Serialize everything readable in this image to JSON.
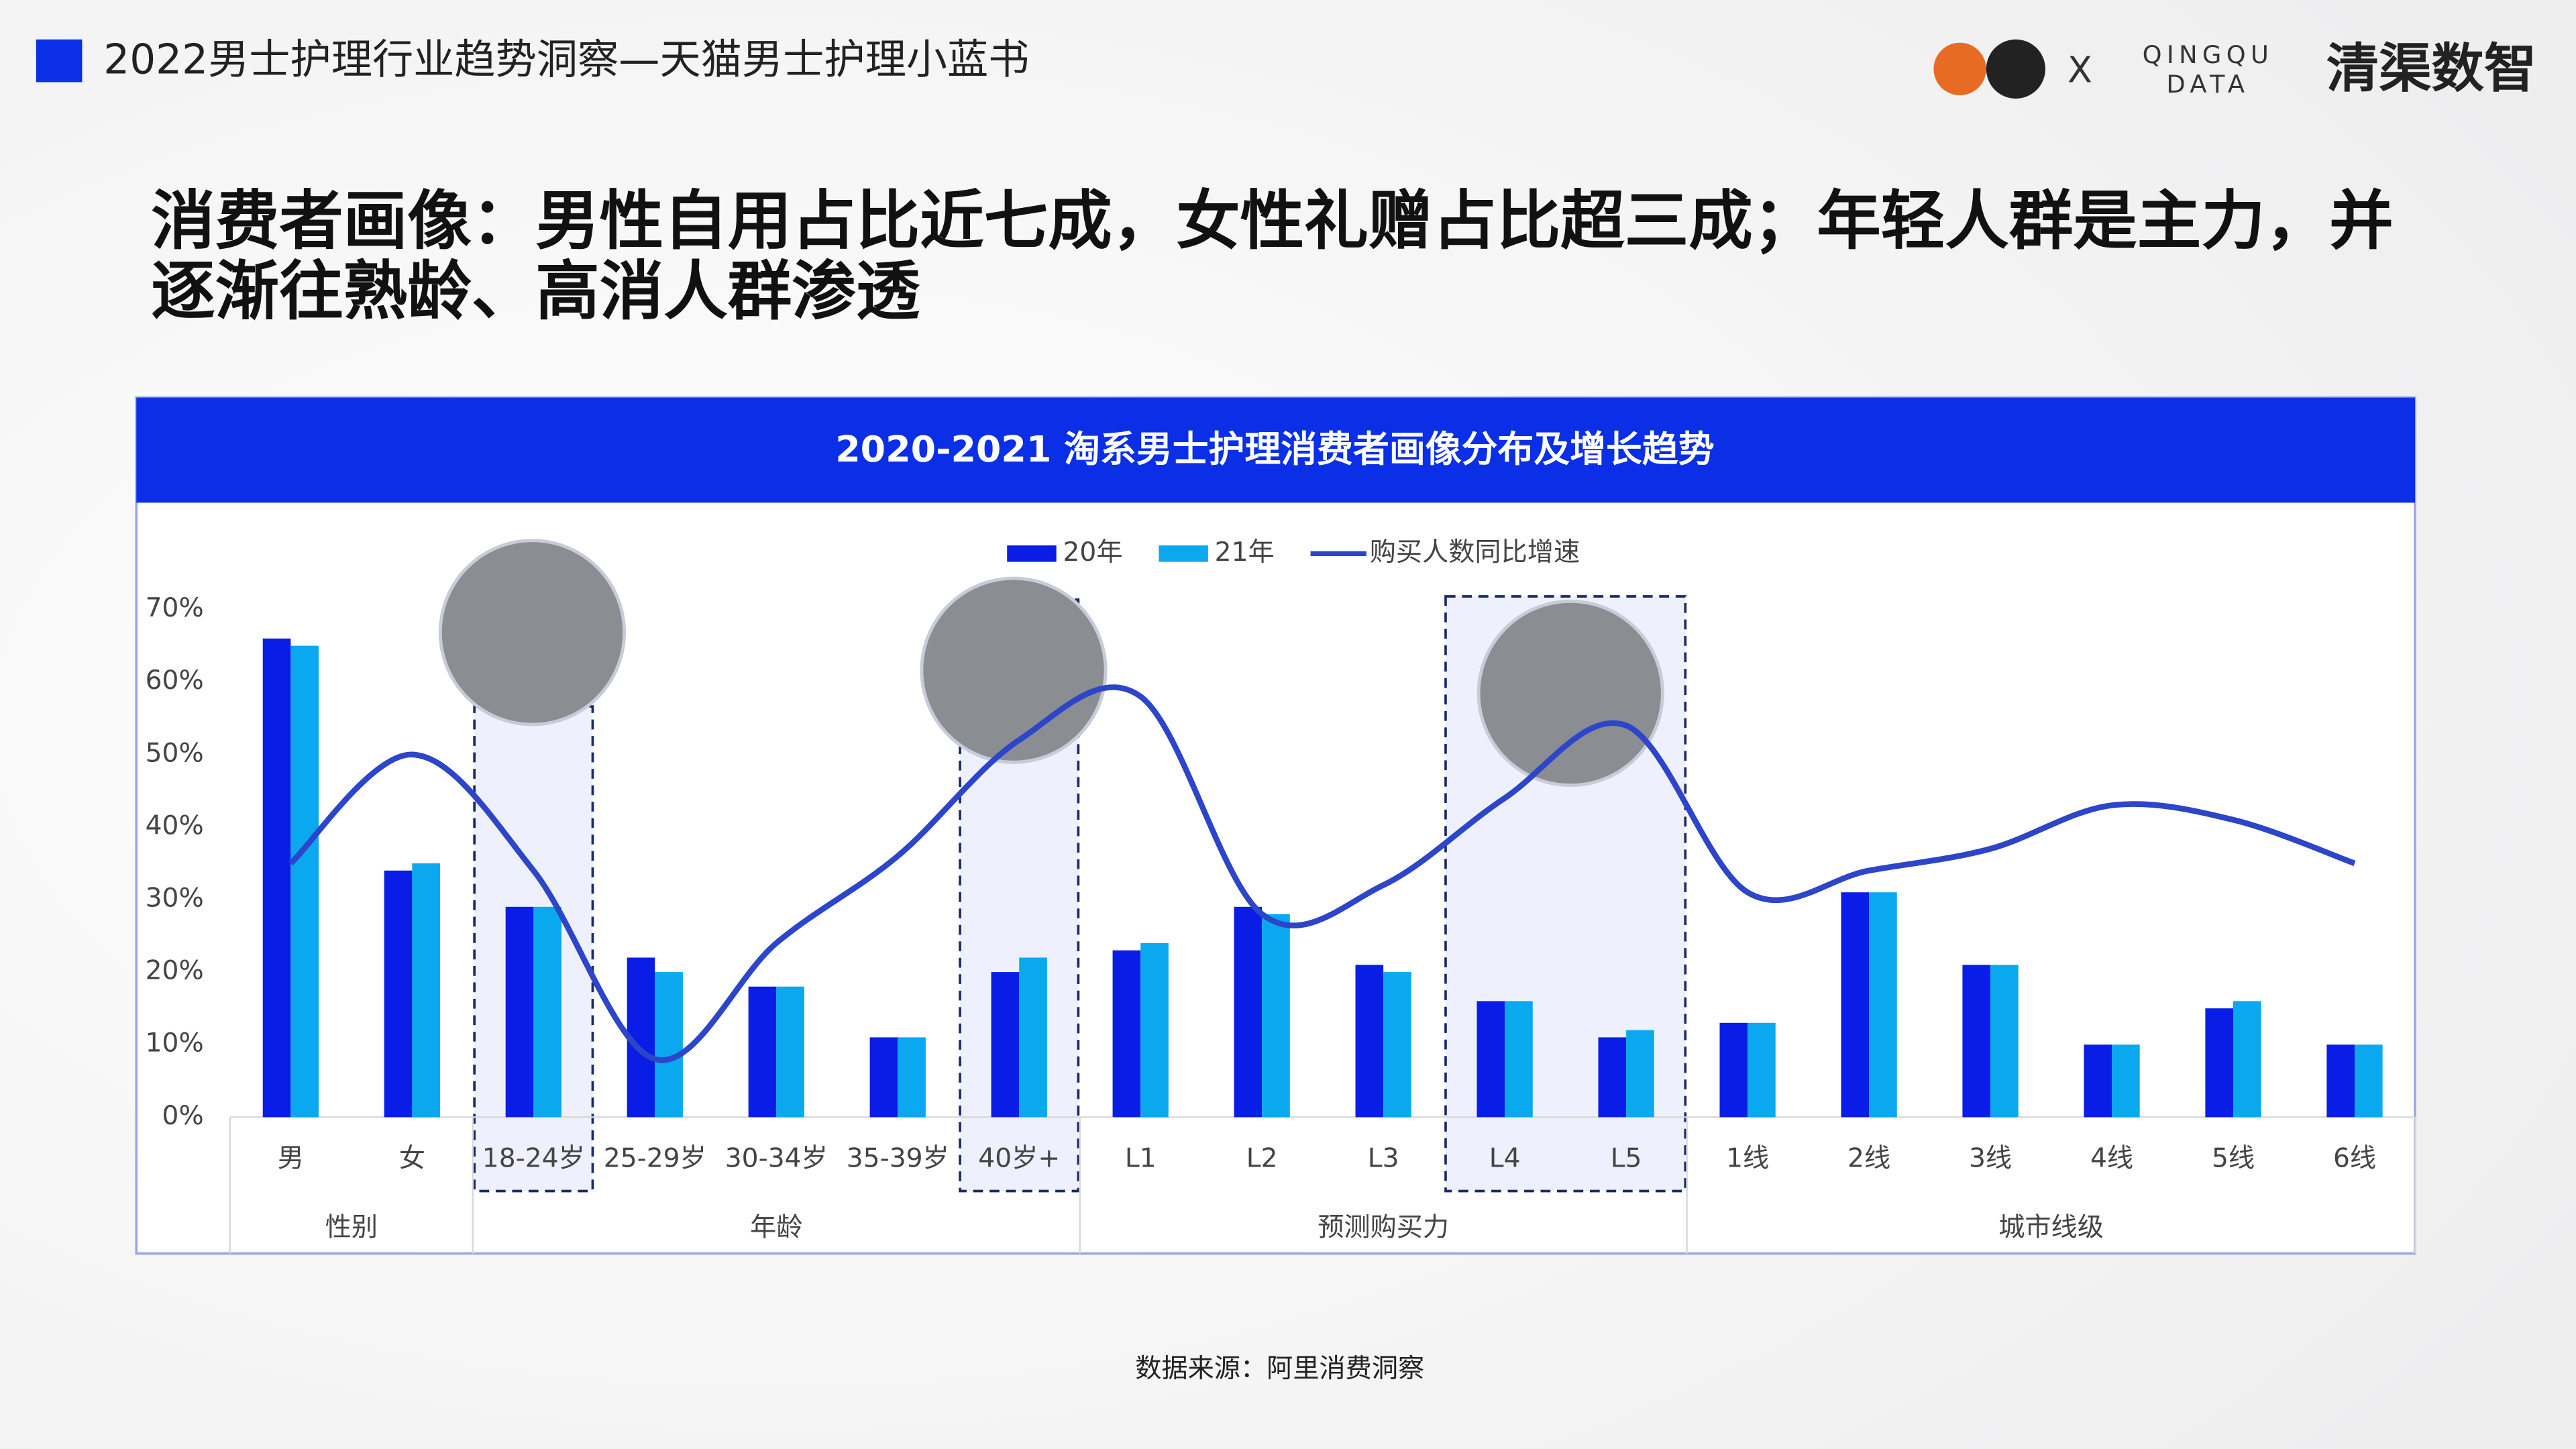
{
  "header": {
    "title": "2022男士护理行业趋势洞察—天猫男士护理小蓝书",
    "logo_x": "X",
    "logo_en_1": "QINGQU",
    "logo_en_2": "DATA",
    "logo_cn": "清渠数智"
  },
  "headline": [
    "消费者画像：男性自用占比近七成，女性礼赠占比超三成；年轻人群是主力，并",
    "逐渐往熟龄、高消人群渗透"
  ],
  "source": "数据来源：阿里消费洞察",
  "chart_data": {
    "type": "bar",
    "title": "2020-2021 淘系男士护理消费者画像分布及增长趋势",
    "groups": [
      {
        "name": "性别",
        "categories": [
          "男",
          "女"
        ]
      },
      {
        "name": "年龄",
        "categories": [
          "18-24岁",
          "25-29岁",
          "30-34岁",
          "35-39岁",
          "40岁+"
        ]
      },
      {
        "name": "预测购买力",
        "categories": [
          "L1",
          "L2",
          "L3",
          "L4",
          "L5"
        ]
      },
      {
        "name": "城市线级",
        "categories": [
          "1线",
          "2线",
          "3线",
          "4线",
          "5线",
          "6线"
        ]
      }
    ],
    "series": [
      {
        "name": "20年",
        "color": "#0a1de6",
        "values": [
          66,
          34,
          29,
          22,
          18,
          11,
          20,
          23,
          29,
          21,
          16,
          11,
          13,
          31,
          21,
          10,
          15,
          10
        ]
      },
      {
        "name": "21年",
        "color": "#0aa8ef",
        "values": [
          65,
          35,
          29,
          20,
          18,
          11,
          22,
          24,
          28,
          20,
          16,
          12,
          13,
          31,
          21,
          10,
          16,
          10
        ]
      },
      {
        "name": "购买人数同比增速",
        "color": "#2d45c9",
        "type": "line",
        "values": [
          35,
          50,
          34,
          8,
          24,
          36,
          52,
          58,
          28,
          32,
          44,
          54,
          31,
          34,
          37,
          43,
          41,
          35
        ]
      }
    ],
    "ylim": [
      0,
      70
    ],
    "yticks": [
      {
        "value": 0,
        "label": "0%"
      },
      {
        "value": 10,
        "label": "10%"
      },
      {
        "value": 20,
        "label": "20%"
      },
      {
        "value": 30,
        "label": "30%"
      },
      {
        "value": 40,
        "label": "40%"
      },
      {
        "value": 50,
        "label": "50%"
      },
      {
        "value": 60,
        "label": "60%"
      },
      {
        "value": 70,
        "label": "70%"
      }
    ],
    "legend": "top"
  }
}
